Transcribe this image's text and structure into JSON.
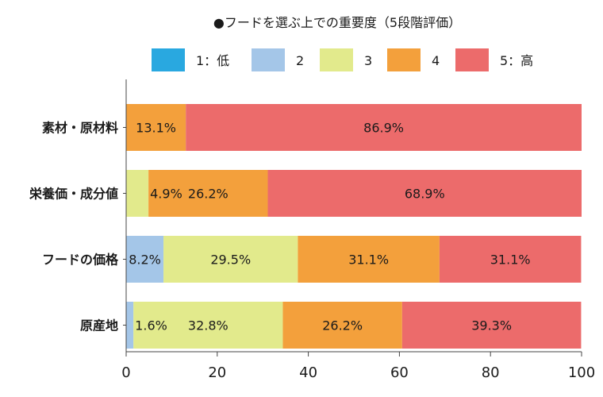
{
  "chart_data": {
    "type": "bar",
    "orientation": "horizontal",
    "stacked": true,
    "title": "●フードを選ぶ上での重要度（5段階評価）",
    "categories": [
      "素材・原材料",
      "栄養価・成分値",
      "フードの価格",
      "原産地"
    ],
    "series": [
      {
        "name": "1：低",
        "color": "#29a8e0",
        "values": [
          0,
          0,
          0,
          0
        ],
        "labels": [
          "",
          "",
          "",
          ""
        ]
      },
      {
        "name": "2",
        "color": "#a4c6e8",
        "values": [
          0,
          0,
          8.2,
          1.6
        ],
        "labels": [
          "",
          "",
          "8.2%",
          "1.6%"
        ]
      },
      {
        "name": "3",
        "color": "#e2ea8c",
        "values": [
          0,
          4.9,
          29.5,
          32.8
        ],
        "labels": [
          "",
          "4.9%",
          "29.5%",
          "32.8%"
        ]
      },
      {
        "name": "4",
        "color": "#f3a03c",
        "values": [
          13.1,
          26.2,
          31.1,
          26.2
        ],
        "labels": [
          "13.1%",
          "26.2%",
          "31.1%",
          "26.2%"
        ]
      },
      {
        "name": "5：高",
        "color": "#ec6b6b",
        "values": [
          86.9,
          68.9,
          31.1,
          39.3
        ],
        "labels": [
          "86.9%",
          "68.9%",
          "31.1%",
          "39.3%"
        ]
      }
    ],
    "xlim": [
      0,
      100
    ],
    "xticks": [
      "0",
      "20",
      "40",
      "60",
      "80",
      "100"
    ],
    "legend_position": "top",
    "grid": false
  }
}
